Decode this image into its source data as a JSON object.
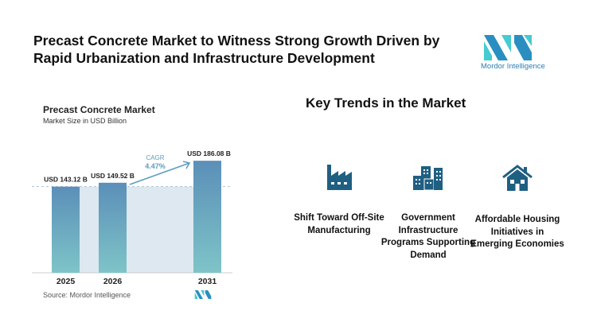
{
  "header": {
    "title": "Precast Concrete Market to Witness Strong Growth Driven by Rapid Urbanization and Infrastructure Development"
  },
  "logo": {
    "text": "Mordor Intelligence",
    "colors": [
      "#2a8fc0",
      "#45cbd0"
    ]
  },
  "chart_data": {
    "type": "bar",
    "title": "Precast Concrete Market",
    "subtitle": "Market Size in USD Billion",
    "categories": [
      "2025",
      "2026",
      "2031"
    ],
    "values": [
      143.12,
      149.52,
      186.08
    ],
    "data_labels": [
      "USD 143.12 B",
      "USD 149.52 B",
      "USD 186.08 B"
    ],
    "annotation": {
      "label": "CAGR",
      "value": "4.47%"
    },
    "source": "Source: Mordor Intelligence",
    "grid": false,
    "colors": {
      "bar_top": "#5b8fb8",
      "bar_bottom": "#7ec4c8",
      "band": "#dde8f0",
      "arrow": "#5b9cc0"
    }
  },
  "trends": {
    "heading": "Key Trends in the Market",
    "items": [
      {
        "icon": "factory-icon",
        "label": "Shift Toward Off-Site Manufacturing"
      },
      {
        "icon": "buildings-icon",
        "label": "Government Infrastructure Programs Supporting Demand"
      },
      {
        "icon": "house-icon",
        "label": "Affordable Housing Initiatives in Emerging Economies"
      }
    ],
    "icon_color": "#1f5f82"
  }
}
